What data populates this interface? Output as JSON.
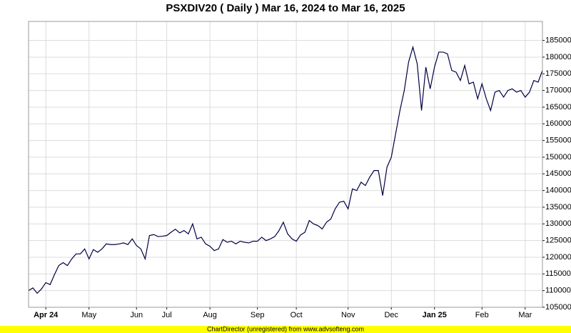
{
  "chart_data": {
    "type": "line",
    "title": "PSXDIV20 ( Daily ) Mar 16, 2024 to Mar 16, 2025",
    "categories": [
      null,
      null,
      null,
      null,
      "Apr 24",
      null,
      null,
      null,
      null,
      null,
      null,
      null,
      null,
      null,
      "May",
      null,
      null,
      null,
      null,
      null,
      null,
      null,
      null,
      null,
      null,
      "Jun",
      null,
      null,
      null,
      null,
      null,
      null,
      "Jul",
      null,
      null,
      null,
      null,
      null,
      null,
      null,
      null,
      null,
      "Aug",
      null,
      null,
      null,
      null,
      null,
      null,
      null,
      null,
      null,
      null,
      "Sep",
      null,
      null,
      null,
      null,
      null,
      null,
      null,
      null,
      "Oct",
      null,
      null,
      null,
      null,
      null,
      null,
      null,
      null,
      null,
      null,
      null,
      "Nov",
      null,
      null,
      null,
      null,
      null,
      null,
      null,
      null,
      null,
      "Dec",
      null,
      null,
      null,
      null,
      null,
      null,
      null,
      null,
      null,
      "Jan 25",
      null,
      null,
      null,
      null,
      null,
      null,
      null,
      null,
      null,
      null,
      "Feb",
      null,
      null,
      null,
      null,
      null,
      null,
      null,
      null,
      null,
      "Mar",
      null,
      null,
      null,
      null
    ],
    "values": [
      110000,
      110800,
      109200,
      110500,
      112400,
      111800,
      114800,
      117500,
      118400,
      117500,
      119500,
      121000,
      121000,
      122500,
      119500,
      122300,
      121500,
      122500,
      124000,
      123800,
      123800,
      124000,
      124300,
      123800,
      125500,
      123500,
      122500,
      119500,
      126500,
      126800,
      126200,
      126300,
      126500,
      127500,
      128400,
      127300,
      128000,
      127000,
      130000,
      125500,
      126000,
      124000,
      123300,
      122000,
      122500,
      125300,
      124500,
      124800,
      124000,
      124800,
      124500,
      124300,
      124800,
      124800,
      126000,
      125000,
      125500,
      126200,
      128000,
      130500,
      127000,
      125500,
      124800,
      126700,
      127500,
      131000,
      130000,
      129500,
      128500,
      130500,
      131500,
      134500,
      136500,
      136800,
      134500,
      140500,
      140000,
      142500,
      141500,
      144000,
      146000,
      146000,
      138500,
      147000,
      150000,
      157000,
      164000,
      170000,
      178500,
      183000,
      178000,
      164000,
      177000,
      170500,
      177000,
      181500,
      181500,
      181000,
      176000,
      175500,
      173000,
      177500,
      172000,
      172500,
      167500,
      172000,
      167500,
      164000,
      169500,
      170000,
      168000,
      170000,
      170500,
      169500,
      170000,
      168000,
      169500,
      173000,
      172500,
      176000
    ],
    "color": "#000044",
    "ylim": [
      105000,
      190700
    ],
    "yticks": [
      105000,
      110000,
      115000,
      120000,
      125000,
      130000,
      135000,
      140000,
      145000,
      150000,
      155000,
      160000,
      165000,
      170000,
      175000,
      180000,
      185000
    ],
    "grid": true
  },
  "footer": "ChartDirector (unregistered) from www.advsofteng.com"
}
